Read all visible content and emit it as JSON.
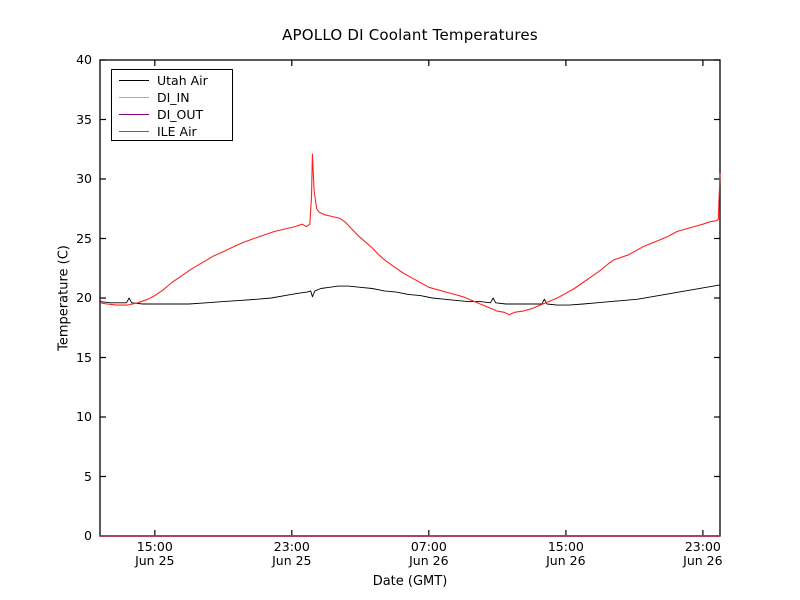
{
  "chart_data": {
    "type": "line",
    "title": "APOLLO DI Coolant Temperatures",
    "xlabel": "Date (GMT)",
    "ylabel": "Temperature (C)",
    "grid": false,
    "legend_position": "upper left",
    "ylim": [
      0,
      40
    ],
    "yticks": [
      0,
      5,
      10,
      15,
      20,
      25,
      30,
      35,
      40
    ],
    "x_unit": "hours since Jun 25 00:00 GMT",
    "xlim_hours": [
      11.8,
      48.0
    ],
    "xticks": [
      {
        "hour": 15,
        "time": "15:00",
        "date": "Jun 25"
      },
      {
        "hour": 23,
        "time": "23:00",
        "date": "Jun 25"
      },
      {
        "hour": 31,
        "time": "07:00",
        "date": "Jun 26"
      },
      {
        "hour": 39,
        "time": "15:00",
        "date": "Jun 26"
      },
      {
        "hour": 47,
        "time": "23:00",
        "date": "Jun 26"
      }
    ],
    "series": [
      {
        "name": "Utah Air",
        "color": "#000000",
        "points": [
          [
            11.8,
            19.7
          ],
          [
            12.4,
            19.6
          ],
          [
            13.0,
            19.6
          ],
          [
            13.35,
            19.6
          ],
          [
            13.5,
            20.0
          ],
          [
            13.65,
            19.6
          ],
          [
            14.3,
            19.5
          ],
          [
            15.0,
            19.5
          ],
          [
            16.0,
            19.5
          ],
          [
            17.0,
            19.5
          ],
          [
            18.0,
            19.6
          ],
          [
            19.0,
            19.7
          ],
          [
            20.0,
            19.8
          ],
          [
            21.0,
            19.9
          ],
          [
            21.8,
            20.0
          ],
          [
            22.6,
            20.2
          ],
          [
            23.4,
            20.4
          ],
          [
            23.9,
            20.5
          ],
          [
            24.1,
            20.6
          ],
          [
            24.2,
            20.1
          ],
          [
            24.35,
            20.6
          ],
          [
            24.7,
            20.8
          ],
          [
            25.2,
            20.9
          ],
          [
            25.7,
            21.0
          ],
          [
            26.3,
            21.0
          ],
          [
            27.0,
            20.9
          ],
          [
            27.7,
            20.8
          ],
          [
            28.4,
            20.6
          ],
          [
            29.1,
            20.5
          ],
          [
            29.8,
            20.3
          ],
          [
            30.5,
            20.2
          ],
          [
            31.2,
            20.0
          ],
          [
            31.9,
            19.9
          ],
          [
            32.6,
            19.8
          ],
          [
            33.3,
            19.7
          ],
          [
            34.0,
            19.7
          ],
          [
            34.6,
            19.6
          ],
          [
            34.75,
            20.0
          ],
          [
            34.9,
            19.6
          ],
          [
            35.5,
            19.5
          ],
          [
            36.2,
            19.5
          ],
          [
            36.9,
            19.5
          ],
          [
            37.6,
            19.5
          ],
          [
            37.75,
            19.9
          ],
          [
            37.9,
            19.5
          ],
          [
            38.5,
            19.4
          ],
          [
            39.2,
            19.4
          ],
          [
            40.0,
            19.5
          ],
          [
            40.8,
            19.6
          ],
          [
            41.6,
            19.7
          ],
          [
            42.4,
            19.8
          ],
          [
            43.2,
            19.9
          ],
          [
            44.0,
            20.1
          ],
          [
            44.8,
            20.3
          ],
          [
            45.6,
            20.5
          ],
          [
            46.4,
            20.7
          ],
          [
            47.2,
            20.9
          ],
          [
            48.0,
            21.1
          ]
        ]
      },
      {
        "name": "DI_IN",
        "color": "#ffa500",
        "points": [
          [
            11.8,
            0
          ],
          [
            48.0,
            0
          ]
        ]
      },
      {
        "name": "DI_OUT",
        "color": "#800080",
        "points": [
          [
            11.8,
            0
          ],
          [
            48.0,
            0
          ]
        ]
      },
      {
        "name": "ILE Air",
        "color": "#ff2222",
        "points": [
          [
            11.8,
            19.6
          ],
          [
            12.2,
            19.5
          ],
          [
            12.8,
            19.4
          ],
          [
            13.4,
            19.4
          ],
          [
            14.0,
            19.6
          ],
          [
            14.6,
            19.9
          ],
          [
            15.0,
            20.2
          ],
          [
            15.5,
            20.7
          ],
          [
            16.0,
            21.3
          ],
          [
            16.6,
            21.9
          ],
          [
            17.2,
            22.5
          ],
          [
            17.8,
            23.0
          ],
          [
            18.4,
            23.5
          ],
          [
            19.0,
            23.9
          ],
          [
            19.6,
            24.3
          ],
          [
            20.2,
            24.7
          ],
          [
            20.8,
            25.0
          ],
          [
            21.4,
            25.3
          ],
          [
            22.0,
            25.6
          ],
          [
            22.6,
            25.8
          ],
          [
            23.2,
            26.0
          ],
          [
            23.6,
            26.2
          ],
          [
            23.85,
            26.0
          ],
          [
            24.05,
            26.2
          ],
          [
            24.15,
            28.5
          ],
          [
            24.2,
            32.1
          ],
          [
            24.3,
            29.0
          ],
          [
            24.45,
            27.5
          ],
          [
            24.6,
            27.2
          ],
          [
            24.9,
            27.0
          ],
          [
            25.2,
            26.9
          ],
          [
            25.5,
            26.8
          ],
          [
            25.8,
            26.7
          ],
          [
            26.1,
            26.4
          ],
          [
            26.5,
            25.8
          ],
          [
            26.9,
            25.2
          ],
          [
            27.3,
            24.7
          ],
          [
            27.7,
            24.2
          ],
          [
            28.1,
            23.6
          ],
          [
            28.5,
            23.1
          ],
          [
            29.0,
            22.6
          ],
          [
            29.5,
            22.1
          ],
          [
            30.0,
            21.7
          ],
          [
            30.5,
            21.3
          ],
          [
            31.0,
            20.9
          ],
          [
            31.5,
            20.7
          ],
          [
            32.0,
            20.5
          ],
          [
            32.5,
            20.3
          ],
          [
            33.0,
            20.1
          ],
          [
            33.5,
            19.8
          ],
          [
            34.0,
            19.5
          ],
          [
            34.5,
            19.2
          ],
          [
            35.0,
            18.9
          ],
          [
            35.4,
            18.8
          ],
          [
            35.7,
            18.6
          ],
          [
            36.0,
            18.8
          ],
          [
            36.5,
            18.9
          ],
          [
            37.0,
            19.1
          ],
          [
            37.5,
            19.4
          ],
          [
            38.0,
            19.7
          ],
          [
            38.5,
            20.0
          ],
          [
            39.0,
            20.4
          ],
          [
            39.5,
            20.8
          ],
          [
            40.0,
            21.3
          ],
          [
            40.5,
            21.8
          ],
          [
            41.0,
            22.3
          ],
          [
            41.5,
            22.9
          ],
          [
            41.8,
            23.2
          ],
          [
            42.2,
            23.4
          ],
          [
            42.6,
            23.6
          ],
          [
            43.0,
            23.9
          ],
          [
            43.5,
            24.3
          ],
          [
            44.0,
            24.6
          ],
          [
            44.5,
            24.9
          ],
          [
            45.0,
            25.2
          ],
          [
            45.5,
            25.6
          ],
          [
            46.0,
            25.8
          ],
          [
            46.5,
            26.0
          ],
          [
            47.0,
            26.2
          ],
          [
            47.4,
            26.4
          ],
          [
            47.8,
            26.5
          ],
          [
            47.9,
            26.6
          ],
          [
            48.0,
            30.5
          ]
        ]
      }
    ]
  }
}
